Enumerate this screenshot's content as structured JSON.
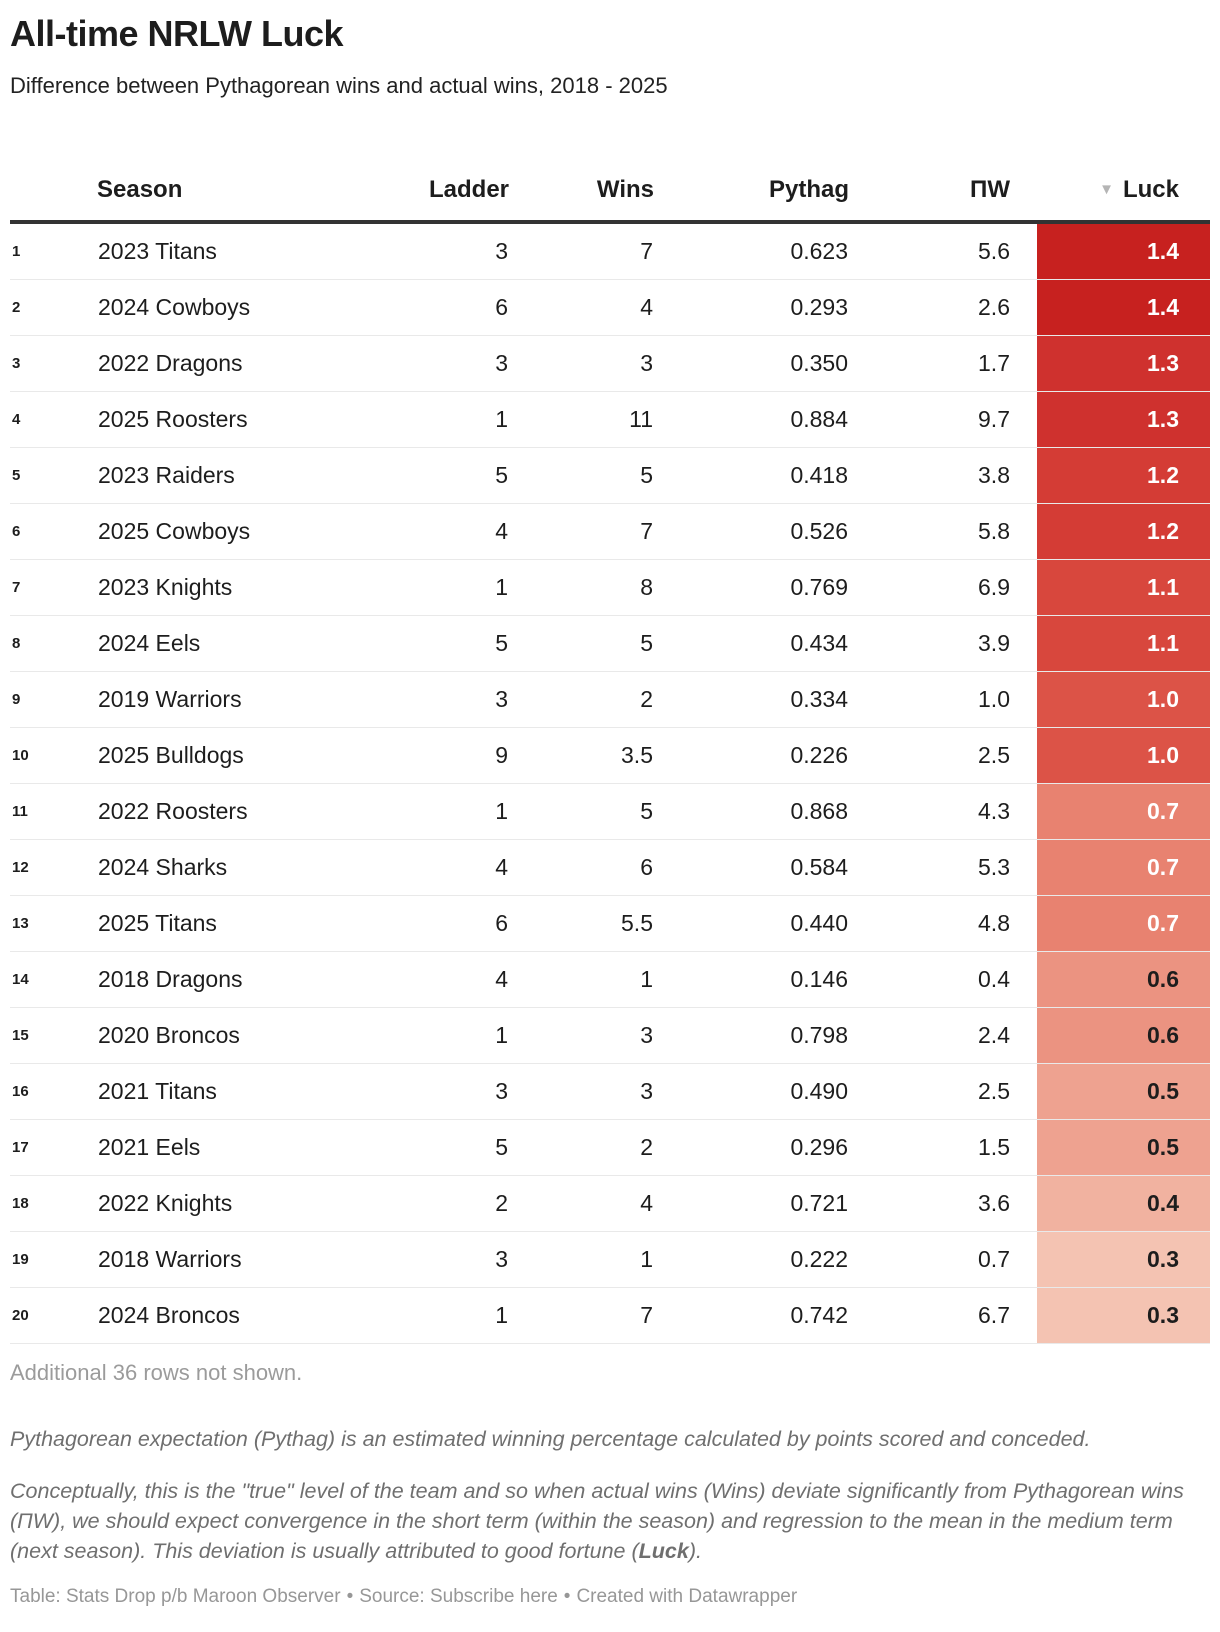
{
  "chart_data": {
    "type": "table",
    "title": "All-time NRLW Luck",
    "subtitle": "Difference between Pythagorean wins and actual wins, 2018 - 2025",
    "sorted_by": "Luck",
    "sort_order": "descending",
    "columns": [
      "Season",
      "Ladder",
      "Wins",
      "Pythag",
      "ΠW",
      "Luck"
    ],
    "rows": [
      {
        "rank": "1",
        "season": "2023 Titans",
        "ladder": "3",
        "wins": "7",
        "pythag": "0.623",
        "pw": "5.6",
        "luck": "1.4",
        "luck_bg": "#c7211f",
        "luck_fg": "#ffffff"
      },
      {
        "rank": "2",
        "season": "2024 Cowboys",
        "ladder": "6",
        "wins": "4",
        "pythag": "0.293",
        "pw": "2.6",
        "luck": "1.4",
        "luck_bg": "#c7211f",
        "luck_fg": "#ffffff"
      },
      {
        "rank": "3",
        "season": "2022 Dragons",
        "ladder": "3",
        "wins": "3",
        "pythag": "0.350",
        "pw": "1.7",
        "luck": "1.3",
        "luck_bg": "#cf312e",
        "luck_fg": "#ffffff"
      },
      {
        "rank": "4",
        "season": "2025 Roosters",
        "ladder": "1",
        "wins": "11",
        "pythag": "0.884",
        "pw": "9.7",
        "luck": "1.3",
        "luck_bg": "#cf312e",
        "luck_fg": "#ffffff"
      },
      {
        "rank": "5",
        "season": "2023 Raiders",
        "ladder": "5",
        "wins": "5",
        "pythag": "0.418",
        "pw": "3.8",
        "luck": "1.2",
        "luck_bg": "#d43c35",
        "luck_fg": "#ffffff"
      },
      {
        "rank": "6",
        "season": "2025 Cowboys",
        "ladder": "4",
        "wins": "7",
        "pythag": "0.526",
        "pw": "5.8",
        "luck": "1.2",
        "luck_bg": "#d43c35",
        "luck_fg": "#ffffff"
      },
      {
        "rank": "7",
        "season": "2023 Knights",
        "ladder": "1",
        "wins": "8",
        "pythag": "0.769",
        "pw": "6.9",
        "luck": "1.1",
        "luck_bg": "#d8473d",
        "luck_fg": "#ffffff"
      },
      {
        "rank": "8",
        "season": "2024 Eels",
        "ladder": "5",
        "wins": "5",
        "pythag": "0.434",
        "pw": "3.9",
        "luck": "1.1",
        "luck_bg": "#d8473d",
        "luck_fg": "#ffffff"
      },
      {
        "rank": "9",
        "season": "2019 Warriors",
        "ladder": "3",
        "wins": "2",
        "pythag": "0.334",
        "pw": "1.0",
        "luck": "1.0",
        "luck_bg": "#dc5347",
        "luck_fg": "#ffffff"
      },
      {
        "rank": "10",
        "season": "2025 Bulldogs",
        "ladder": "9",
        "wins": "3.5",
        "pythag": "0.226",
        "pw": "2.5",
        "luck": "1.0",
        "luck_bg": "#dc5347",
        "luck_fg": "#ffffff"
      },
      {
        "rank": "11",
        "season": "2022 Roosters",
        "ladder": "1",
        "wins": "5",
        "pythag": "0.868",
        "pw": "4.3",
        "luck": "0.7",
        "luck_bg": "#e88270",
        "luck_fg": "#ffffff"
      },
      {
        "rank": "12",
        "season": "2024 Sharks",
        "ladder": "4",
        "wins": "6",
        "pythag": "0.584",
        "pw": "5.3",
        "luck": "0.7",
        "luck_bg": "#e88270",
        "luck_fg": "#ffffff"
      },
      {
        "rank": "13",
        "season": "2025 Titans",
        "ladder": "6",
        "wins": "5.5",
        "pythag": "0.440",
        "pw": "4.8",
        "luck": "0.7",
        "luck_bg": "#e88270",
        "luck_fg": "#ffffff"
      },
      {
        "rank": "14",
        "season": "2018 Dragons",
        "ladder": "4",
        "wins": "1",
        "pythag": "0.146",
        "pw": "0.4",
        "luck": "0.6",
        "luck_bg": "#eb9381",
        "luck_fg": "#1d1d1d"
      },
      {
        "rank": "15",
        "season": "2020 Broncos",
        "ladder": "1",
        "wins": "3",
        "pythag": "0.798",
        "pw": "2.4",
        "luck": "0.6",
        "luck_bg": "#eb9381",
        "luck_fg": "#1d1d1d"
      },
      {
        "rank": "16",
        "season": "2021 Titans",
        "ladder": "3",
        "wins": "3",
        "pythag": "0.490",
        "pw": "2.5",
        "luck": "0.5",
        "luck_bg": "#eea290",
        "luck_fg": "#1d1d1d"
      },
      {
        "rank": "17",
        "season": "2021 Eels",
        "ladder": "5",
        "wins": "2",
        "pythag": "0.296",
        "pw": "1.5",
        "luck": "0.5",
        "luck_bg": "#eea290",
        "luck_fg": "#1d1d1d"
      },
      {
        "rank": "18",
        "season": "2022 Knights",
        "ladder": "2",
        "wins": "4",
        "pythag": "0.721",
        "pw": "3.6",
        "luck": "0.4",
        "luck_bg": "#f1b2a0",
        "luck_fg": "#1d1d1d"
      },
      {
        "rank": "19",
        "season": "2018 Warriors",
        "ladder": "3",
        "wins": "1",
        "pythag": "0.222",
        "pw": "0.7",
        "luck": "0.3",
        "luck_bg": "#f4c3b2",
        "luck_fg": "#1d1d1d"
      },
      {
        "rank": "20",
        "season": "2024 Broncos",
        "ladder": "1",
        "wins": "7",
        "pythag": "0.742",
        "pw": "6.7",
        "luck": "0.3",
        "luck_bg": "#f4c3b2",
        "luck_fg": "#1d1d1d"
      }
    ],
    "luck_color_scale": {
      "max_color": "#c7211f",
      "min_color": "#f4c3b2"
    }
  },
  "ui": {
    "sort_icon": "▼"
  },
  "footer": {
    "more_rows": "Additional 36 rows not shown.",
    "note1": "Pythagorean expectation (Pythag) is an estimated winning percentage calculated by points scored and conceded.",
    "note2": {
      "part1": "Conceptually, this is the \"true\" level of the team and so when actual wins (Wins) deviate significantly from Pythagorean wins (ΠW), we should expect convergence in the short term (within the season) and regression to the mean in the medium term (next season). This deviation is usually attributed to good fortune (",
      "bold": "Luck",
      "part2": ")."
    },
    "caption": {
      "table_label": "Table: ",
      "table_value": "Stats Drop p/b Maroon Observer",
      "separator": "•",
      "source_label": "Source: ",
      "source_link": "Subscribe here",
      "created": "Created with Datawrapper"
    }
  }
}
